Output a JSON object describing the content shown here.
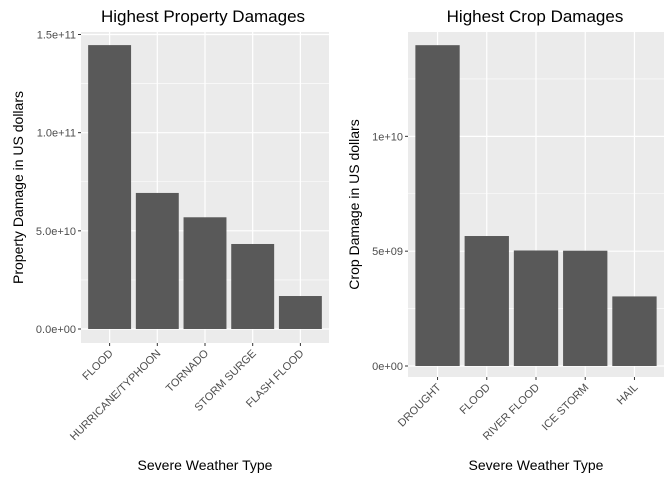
{
  "chart_data": [
    {
      "type": "bar",
      "title": "Highest Property Damages",
      "xlabel": "Severe Weather Type",
      "ylabel": "Property Damage in US dollars",
      "categories": [
        "FLOOD",
        "HURRICANE/TYPHOON",
        "TORNADO",
        "STORM SURGE",
        "FLASH FLOOD"
      ],
      "values": [
        144600000000,
        69300000000,
        56900000000,
        43300000000,
        16800000000
      ],
      "ylim": [
        0,
        150000000000
      ],
      "yticks": [
        0,
        50000000000,
        100000000000,
        150000000000
      ],
      "ytick_labels": [
        "0.0e+00",
        "5.0e+10",
        "1.0e+11",
        "1.5e+11"
      ],
      "grid": true,
      "colors": {
        "bar": "#595959",
        "panel": "#ebebeb",
        "grid": "#ffffff",
        "text": "#000000",
        "tick_text": "#4d4d4d"
      }
    },
    {
      "type": "bar",
      "title": "Highest Crop Damages",
      "xlabel": "Severe Weather Type",
      "ylabel": "Crop Damage in US dollars",
      "categories": [
        "DROUGHT",
        "FLOOD",
        "RIVER FLOOD",
        "ICE STORM",
        "HAIL"
      ],
      "values": [
        13970000000,
        5660000000,
        5030000000,
        5020000000,
        3030000000
      ],
      "ylim": [
        0,
        14500000000
      ],
      "yticks": [
        0,
        5000000000,
        10000000000
      ],
      "ytick_labels": [
        "0e+00",
        "5e+09",
        "1e+10"
      ],
      "grid": true,
      "colors": {
        "bar": "#595959",
        "panel": "#ebebeb",
        "grid": "#ffffff",
        "text": "#000000",
        "tick_text": "#4d4d4d"
      }
    }
  ]
}
